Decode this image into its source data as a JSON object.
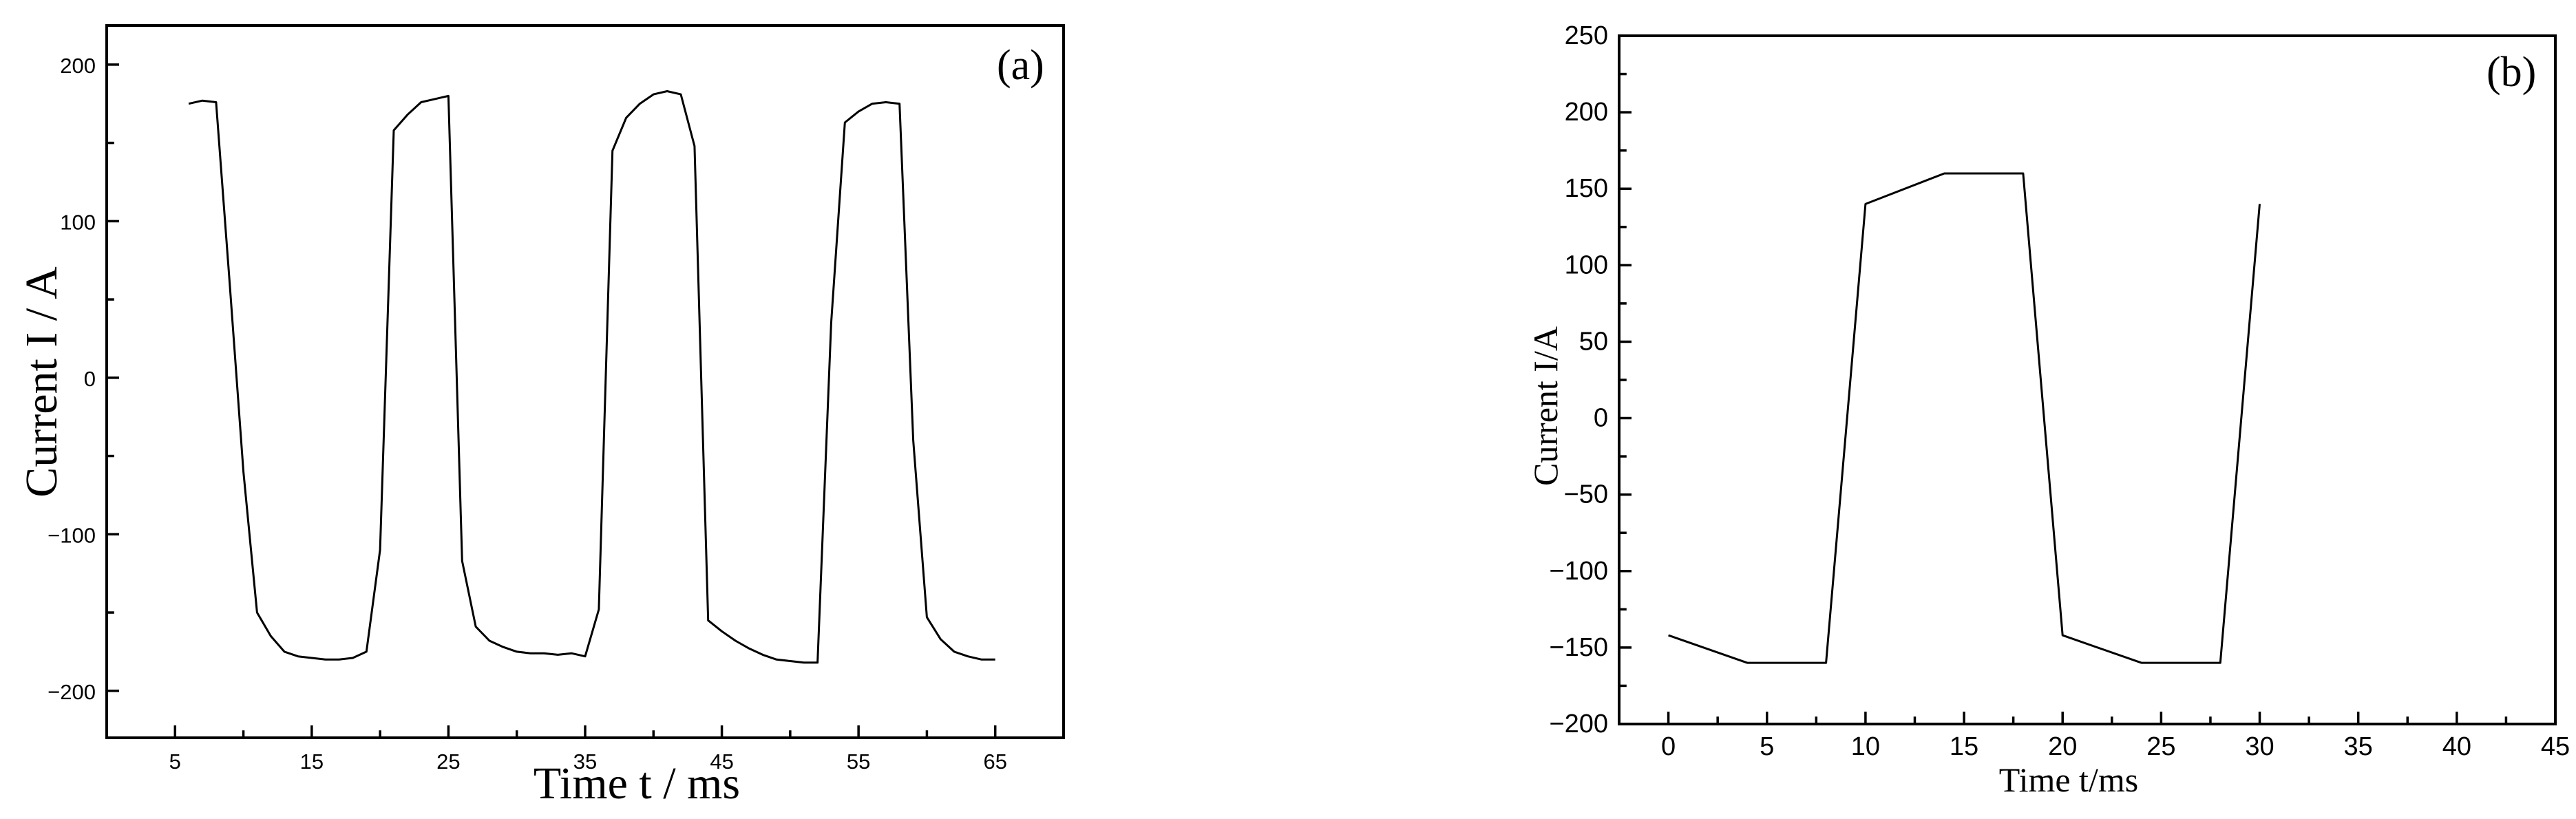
{
  "chart_data": [
    {
      "type": "line",
      "panel_label": "(a)",
      "xlabel": "Time  t / ms",
      "ylabel": "Current  I / A",
      "xlim": [
        0,
        70
      ],
      "ylim": [
        -230,
        225
      ],
      "xticks": [
        5,
        15,
        25,
        35,
        45,
        55,
        65
      ],
      "xticks_minor": [
        10,
        20,
        30,
        40,
        50,
        60
      ],
      "yticks": [
        -200,
        -100,
        0,
        100,
        200
      ],
      "ytick_labels": [
        "−200",
        "−100",
        "0",
        "100",
        "200"
      ],
      "grid": false,
      "series": [
        {
          "x": [
            6.0,
            7.0,
            8.0,
            9.0,
            10.0,
            11.0,
            12.0,
            13.0,
            14.0,
            15.0,
            16.0,
            17.0,
            18.0,
            19.0,
            20.0,
            21.0,
            22.0,
            23.0,
            24.0,
            25.0,
            26.0,
            27.0,
            28.0,
            29.0,
            30.0,
            31.0,
            32.0,
            33.0,
            34.0,
            35.0,
            36.0,
            37.0,
            38.0,
            39.0,
            40.0,
            41.0,
            42.0,
            43.0,
            44.0,
            45.0,
            46.0,
            47.0,
            48.0,
            49.0,
            50.0,
            51.0,
            52.0,
            53.0,
            54.0,
            55.0,
            56.0,
            57.0,
            58.0,
            59.0,
            60.0,
            61.0,
            62.0,
            63.0,
            64.0,
            65.0
          ],
          "y": [
            175,
            177,
            176,
            60,
            -60,
            -150,
            -165,
            -175,
            -178,
            -179,
            -180,
            -180,
            -179,
            -175,
            -110,
            158,
            168,
            176,
            178,
            180,
            -117,
            -159,
            -168,
            -172,
            -175,
            -176,
            -176,
            -177,
            -176,
            -178,
            -148,
            145,
            166,
            175,
            181,
            183,
            181,
            148,
            -155,
            -162,
            -168,
            -173,
            -177,
            -180,
            -181,
            -182,
            -182,
            35,
            163,
            170,
            175,
            176,
            175,
            -40,
            -153,
            -167,
            -175,
            -178,
            -180,
            -180
          ]
        }
      ]
    },
    {
      "type": "line",
      "panel_label": "(b)",
      "xlabel": "Time t/ms",
      "ylabel": "Current I/A",
      "xlim": [
        -2.5,
        45
      ],
      "ylim": [
        -200,
        250
      ],
      "xticks": [
        0,
        5,
        10,
        15,
        20,
        25,
        30,
        35,
        40,
        45
      ],
      "yticks": [
        -200,
        -150,
        -100,
        -50,
        0,
        50,
        100,
        150,
        200,
        250
      ],
      "ytick_labels": [
        "−200",
        "−150",
        "−100",
        "−50",
        "0",
        "50",
        "100",
        "150",
        "200",
        "250"
      ],
      "grid": false,
      "series": [
        {
          "x": [
            0,
            4,
            8,
            10,
            14,
            18,
            20,
            24,
            28,
            30
          ],
          "y": [
            -142,
            -160,
            -160,
            140,
            160,
            160,
            -142,
            -160,
            -160,
            140
          ]
        }
      ]
    }
  ]
}
